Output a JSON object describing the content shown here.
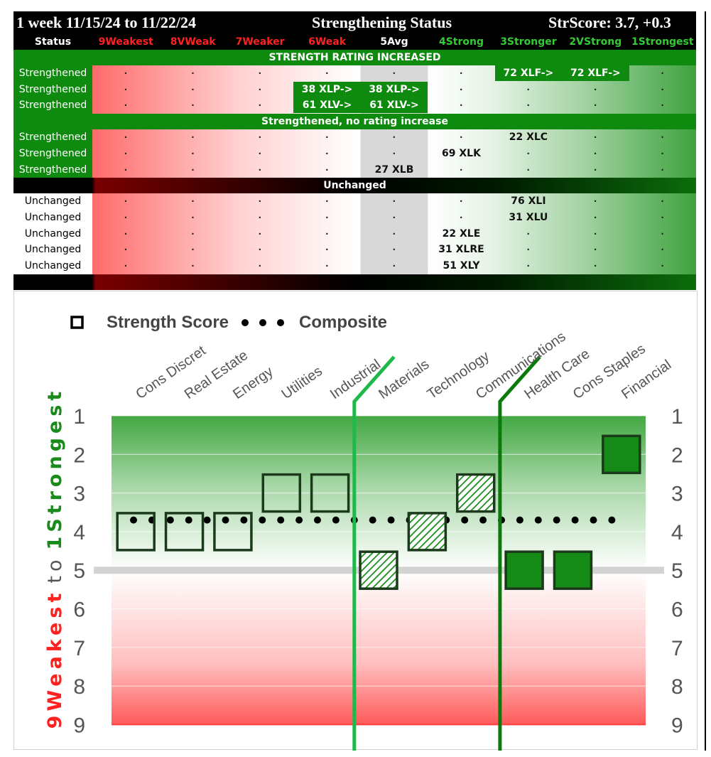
{
  "table": {
    "period": "1 week 11/15/24 to 11/22/24",
    "title": "Strengthening Status",
    "score": "StrScore: 3.7, +0.3",
    "status_header": "Status",
    "columns": [
      {
        "label": "9Weakest",
        "color": "#ff2020"
      },
      {
        "label": "8VWeak",
        "color": "#ff2020"
      },
      {
        "label": "7Weaker",
        "color": "#ff2020"
      },
      {
        "label": "6Weak",
        "color": "#ff2020"
      },
      {
        "label": "5Avg",
        "color": "#ffffff"
      },
      {
        "label": "4Strong",
        "color": "#33cc33"
      },
      {
        "label": "3Stronger",
        "color": "#33cc33"
      },
      {
        "label": "2VStrong",
        "color": "#33cc33"
      },
      {
        "label": "1Strongest",
        "color": "#33cc33"
      }
    ],
    "dot": ".",
    "sections": [
      {
        "title": "STRENGTH RATING INCREASED",
        "bar_color": "#0e8a0e",
        "label_bg": "#0e8a0e",
        "label_color": "#ffffff",
        "rows": [
          {
            "label": "Strengthened",
            "cells": {
              "6": "72 XLF->",
              "7": "72 XLF->"
            },
            "hl": [
              6,
              7
            ]
          },
          {
            "label": "Strengthened",
            "cells": {
              "3": "38 XLP->",
              "4": "38 XLP->"
            },
            "hl": [
              3,
              4
            ]
          },
          {
            "label": "Strengthened",
            "cells": {
              "3": "61 XLV->",
              "4": "61 XLV->"
            },
            "hl": [
              3,
              4
            ]
          }
        ]
      },
      {
        "title": "Strengthened, no rating increase",
        "bar_color": "#0e8a0e",
        "label_bg": "#0e8a0e",
        "label_color": "#ffffff",
        "rows": [
          {
            "label": "Strengthened",
            "cells": {
              "6": "22 XLC"
            },
            "hl": []
          },
          {
            "label": "Strengthened",
            "cells": {
              "5": "69 XLK"
            },
            "hl": []
          },
          {
            "label": "Strengthened",
            "cells": {
              "4": "27 XLB"
            },
            "hl": []
          }
        ]
      },
      {
        "title": "Unchanged",
        "bar_color": "#000000",
        "label_bg": "#ffffff",
        "label_color": "#000000",
        "rows": [
          {
            "label": "Unchanged",
            "cells": {
              "6": "76 XLI"
            },
            "hl": []
          },
          {
            "label": "Unchanged",
            "cells": {
              "6": "31 XLU"
            },
            "hl": []
          },
          {
            "label": "Unchanged",
            "cells": {
              "5": "22 XLE"
            },
            "hl": []
          },
          {
            "label": "Unchanged",
            "cells": {
              "5": "31 XLRE"
            },
            "hl": []
          },
          {
            "label": "Unchanged",
            "cells": {
              "5": "51 XLY"
            },
            "hl": []
          }
        ]
      }
    ]
  },
  "chart_data": {
    "type": "scatter",
    "legend": {
      "strength_label": "Strength Score",
      "composite_label": "Composite",
      "position": "top-left"
    },
    "categories": [
      "Cons Discret",
      "Real Estate",
      "Energy",
      "Utilities",
      "Industrial",
      "Materials",
      "Technology",
      "Communications",
      "Health Care",
      "Cons Staples",
      "Financial"
    ],
    "strength_scores": [
      4,
      4,
      4,
      3,
      3,
      5,
      4,
      3,
      5,
      5,
      2
    ],
    "marker_styles": [
      "hollow",
      "hollow",
      "hollow",
      "hollow",
      "hollow",
      "hatched",
      "hatched",
      "hatched",
      "solid",
      "solid",
      "solid"
    ],
    "composite": 3.7,
    "ylim": [
      1,
      9
    ],
    "y_inverted": true,
    "yticks": [
      "1",
      "2",
      "3",
      "4",
      "5",
      "6",
      "7",
      "8",
      "9"
    ],
    "y_axis_title": {
      "weak": "9Weakest",
      "to": "to",
      "strong": "1Strongest"
    },
    "reference_line": 5,
    "category_dividers_after": [
      "Industrial",
      "Communications"
    ],
    "colors": {
      "strong": "#1a8a1a",
      "weak": "#ff3030",
      "marker_dark": "#1b3a1b",
      "fill_green": "#168a16",
      "divider_green": "#1fb84a"
    }
  }
}
